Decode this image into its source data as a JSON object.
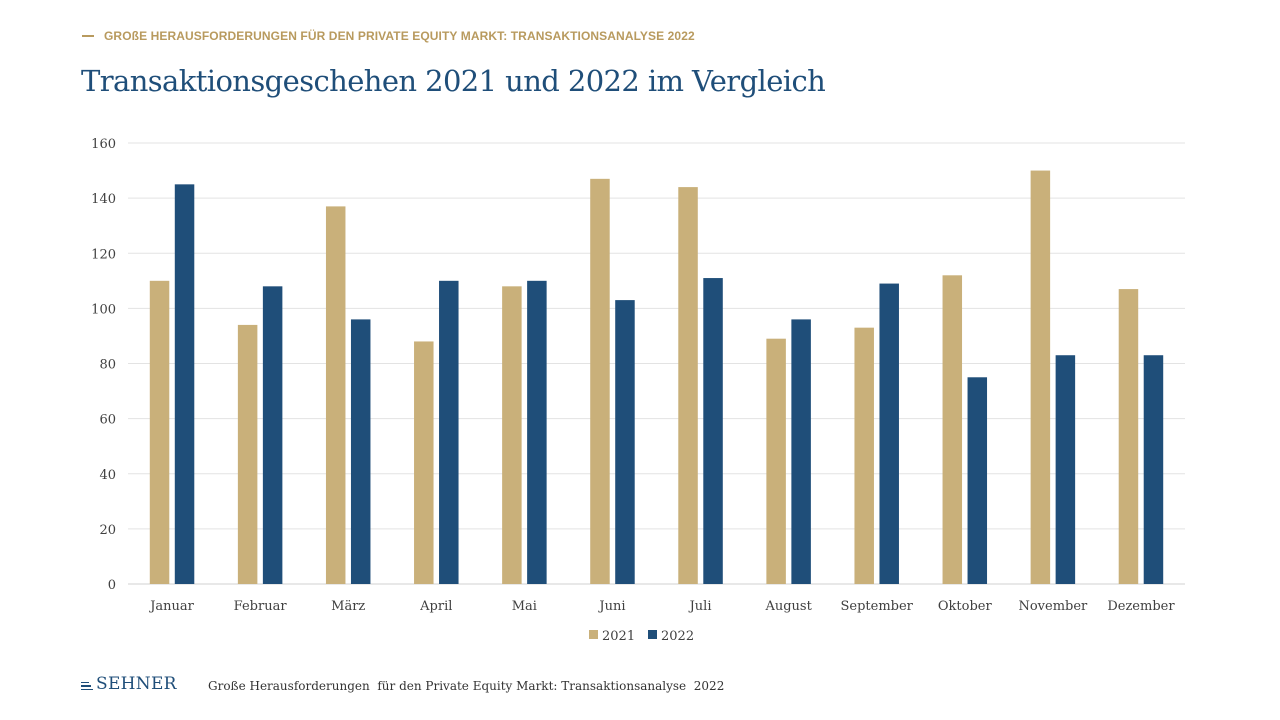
{
  "header": {
    "kicker": "GROßE HERAUSFORDERUNGEN FÜR DEN PRIVATE EQUITY MARKT: TRANSAKTIONSANALYSE 2022",
    "title": "Transaktionsgeschehen 2021 und 2022 im Vergleich"
  },
  "footer": {
    "logo": "SEHNER",
    "text": "Große Herausforderungen  für den Private Equity Markt: Transaktionsanalyse  2022"
  },
  "colors": {
    "accent_gold": "#c9b07a",
    "accent_navy": "#1f4e79"
  },
  "chart_data": {
    "type": "bar",
    "categories": [
      "Januar",
      "Februar",
      "März",
      "April",
      "Mai",
      "Juni",
      "Juli",
      "August",
      "September",
      "Oktober",
      "November",
      "Dezember"
    ],
    "series": [
      {
        "name": "2021",
        "color": "#c9b07a",
        "values": [
          110,
          94,
          137,
          88,
          108,
          147,
          144,
          89,
          93,
          112,
          150,
          107
        ]
      },
      {
        "name": "2022",
        "color": "#1f4e79",
        "values": [
          145,
          108,
          96,
          110,
          110,
          103,
          111,
          96,
          109,
          75,
          83,
          83
        ]
      }
    ],
    "y_ticks": [
      0,
      20,
      40,
      60,
      80,
      100,
      120,
      140,
      160
    ],
    "ylim": [
      0,
      160
    ],
    "grid": true,
    "legend": "bottom-center"
  }
}
